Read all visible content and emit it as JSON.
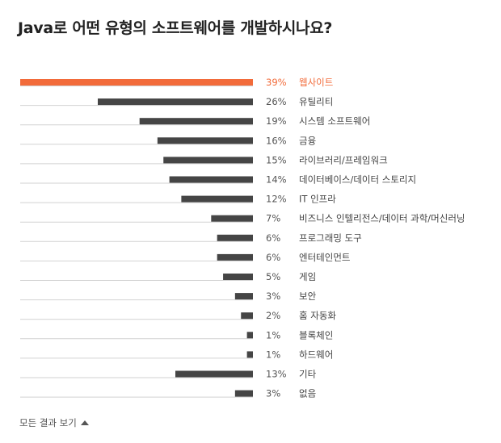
{
  "chart_data": {
    "type": "bar",
    "orientation": "horizontal",
    "title": "Java로 어떤 유형의 소프트웨어를 개발하시나요?",
    "categories": [
      "웹사이트",
      "유틸리티",
      "시스템 소프트웨어",
      "금융",
      "라이브러리/프레임워크",
      "데이터베이스/데이터 스토리지",
      "IT 인프라",
      "비즈니스 인텔리전스/데이터 과학/머신러닝",
      "프로그래밍 도구",
      "엔터테인먼트",
      "게임",
      "보안",
      "홈 자동화",
      "블록체인",
      "하드웨어",
      "기타",
      "없음"
    ],
    "values": [
      39,
      26,
      19,
      16,
      15,
      14,
      12,
      7,
      6,
      6,
      5,
      3,
      2,
      1,
      1,
      13,
      3
    ],
    "value_labels": [
      "39%",
      "26%",
      "19%",
      "16%",
      "15%",
      "14%",
      "12%",
      "7%",
      "6%",
      "6%",
      "5%",
      "3%",
      "2%",
      "1%",
      "1%",
      "13%",
      "3%"
    ],
    "unit": "%",
    "highlight_index": 0,
    "colors": {
      "highlight": "#f26b3a",
      "bar": "#454545",
      "baseline": "#d2d2d2",
      "highlight_text": "#f26b3a",
      "text": "#444444"
    },
    "xlim": [
      0,
      39
    ]
  },
  "footer": {
    "show_all_label": "모든 결과 보기"
  }
}
